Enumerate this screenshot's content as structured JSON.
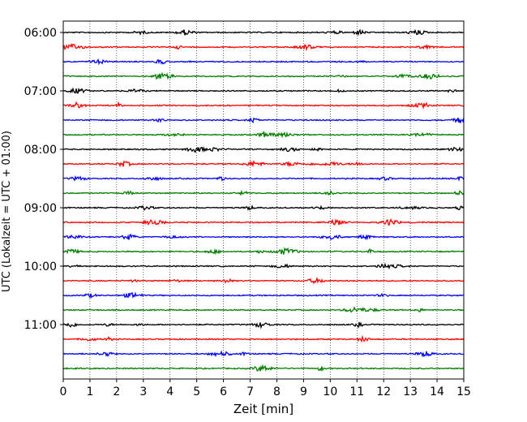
{
  "chart_data": {
    "type": "line",
    "title": "",
    "xlabel": "Zeit  [min]",
    "ylabel": "UTC (Lokalzeit = UTC + 01:00)",
    "xlim": [
      0,
      15
    ],
    "x_ticks": [
      "0",
      "1",
      "2",
      "3",
      "4",
      "5",
      "6",
      "7",
      "8",
      "9",
      "10",
      "11",
      "12",
      "13",
      "14",
      "15"
    ],
    "y_ticks": [
      "06:00",
      "07:00",
      "08:00",
      "09:00",
      "10:00",
      "11:00"
    ],
    "grid": "vertical dotted lines at each minute",
    "trace_interval_minutes": 15,
    "start_time": "06:00",
    "trace_count": 24,
    "trace_colors": [
      "#000000",
      "#ff0000",
      "#0000ff",
      "#008000"
    ],
    "legend": "none"
  }
}
